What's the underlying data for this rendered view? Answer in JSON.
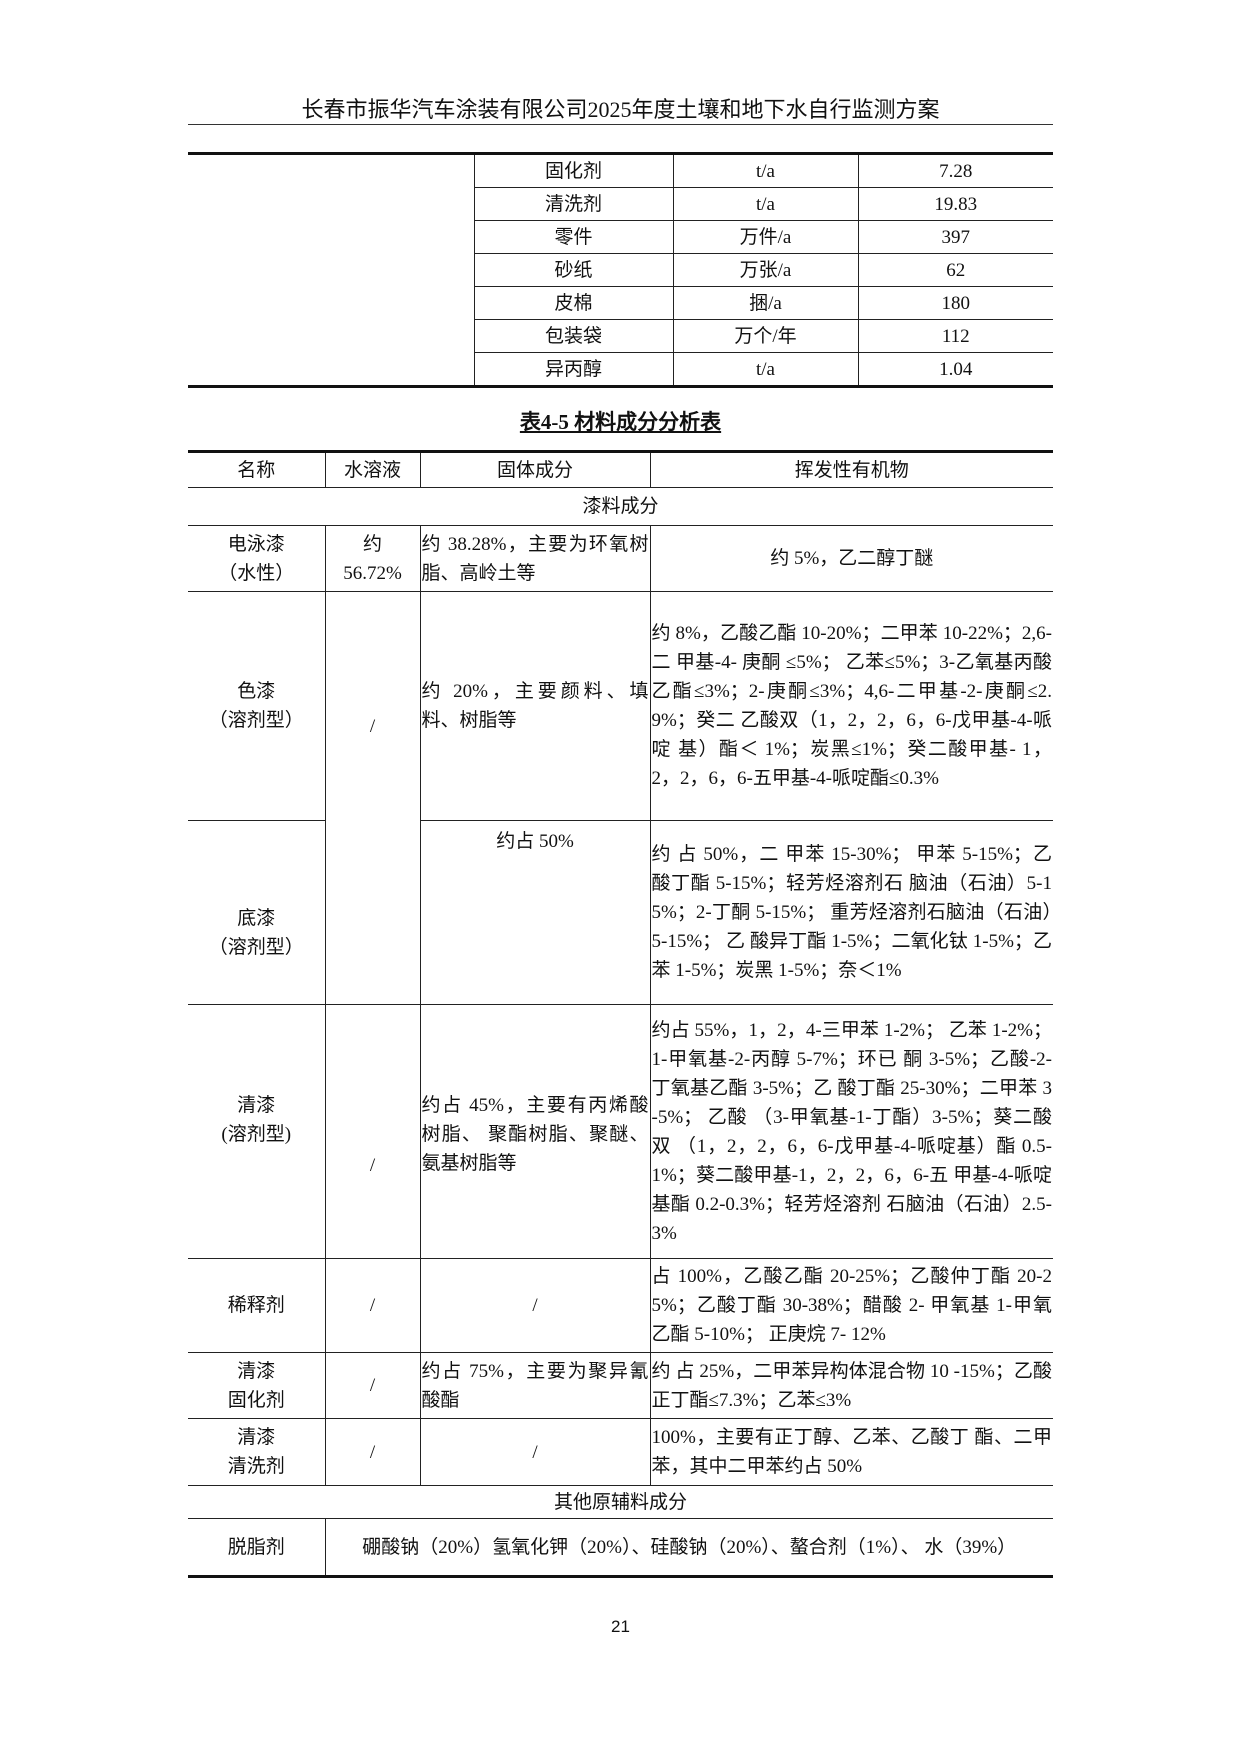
{
  "header": {
    "title": "长春市振华汽车涂装有限公司2025年度土壤和地下水自行监测方案"
  },
  "table1": {
    "rows": [
      {
        "name": "固化剂",
        "unit": "t/a",
        "value": "7.28"
      },
      {
        "name": "清洗剂",
        "unit": "t/a",
        "value": "19.83"
      },
      {
        "name": "零件",
        "unit": "万件/a",
        "value": "397"
      },
      {
        "name": "砂纸",
        "unit": "万张/a",
        "value": "62"
      },
      {
        "name": "皮棉",
        "unit": "捆/a",
        "value": "180"
      },
      {
        "name": "包装袋",
        "unit": "万个/年",
        "value": "112"
      },
      {
        "name": "异丙醇",
        "unit": "t/a",
        "value": "1.04"
      }
    ]
  },
  "table2": {
    "caption": "表4-5 材料成分分析表",
    "headers": [
      "名称",
      "水溶液",
      "固体成分",
      "挥发性有机物"
    ],
    "section1": "漆料成分",
    "rows": [
      {
        "name": "电泳漆（水性）",
        "water": "约 56.72%",
        "solid": "约 38.28%，主要为环氧树脂、高岭土等",
        "voc": "约 5%，乙二醇丁醚"
      },
      {
        "name": "色漆（溶剂型）",
        "water": "/",
        "solid": "约 20%，主要颜料、填料、树脂等",
        "voc": "约 8%，乙酸乙酯 10-20%；二甲苯 10-22%；2,6-二 甲基-4- 庚酮 ≤5%； 乙苯≤5%；3-乙氧基丙酸乙酯≤3%；2-庚酮≤3%；4,6-二甲基-2-庚酮≤2.9%；癸二 乙酸双（1，2，2，6，6-戊甲基-4-哌啶 基）酯＜ 1%；炭黑≤1%；癸二酸甲基- 1，2，2，6，6-五甲基-4-哌啶酯≤0.3%"
      },
      {
        "name": "底漆（溶剂型）",
        "water": "",
        "solid": "约占 50%",
        "voc": "约 占 50%，二 甲苯 15-30%； 甲苯 5-15%；乙酸丁酯 5-15%；轻芳烃溶剂石 脑油（石油）5-15%；2-丁酮 5-15%； 重芳烃溶剂石脑油（石油）5-15%； 乙 酸异丁酯 1-5%；二氧化钛 1-5%；乙苯 1-5%；炭黑 1-5%；奈＜1%"
      },
      {
        "name": "清漆(溶剂型)",
        "water": "/",
        "solid": "约占 45%，主要有丙烯酸树脂、 聚酯树脂、聚醚、氨基树脂等",
        "voc": "约占 55%，1，2，4-三甲苯 1-2%； 乙苯 1-2%；1-甲氧基-2-丙醇 5-7%；环已 酮 3-5%；乙酸-2-丁氧基乙酯 3-5%；乙 酸丁酯 25-30%；二甲苯 3-5%； 乙酸 （3-甲氧基-1-丁酯）3-5%；葵二酸双 （1，2，2，6，6-戊甲基-4-哌啶基）酯 0.5-1%；葵二酸甲基-1，2，2，6，6-五 甲基-4-哌啶基酯 0.2-0.3%；轻芳烃溶剂 石脑油（石油）2.5-3%"
      },
      {
        "name": "稀释剂",
        "water": "/",
        "solid": "/",
        "voc": "占 100%，乙酸乙酯 20-25%；乙酸仲丁酯 20-25%；乙酸丁酯 30-38%；醋酸 2- 甲氧基 1-甲氧乙酯 5-10%； 正庚烷 7- 12%"
      },
      {
        "name": "清漆固化剂",
        "water": "/",
        "solid": "约占 75%，主要为聚异氰酸酯",
        "voc": "约 占 25%，二甲苯异构体混合物 10 -15%；乙酸正丁酯≤7.3%；乙苯≤3%"
      },
      {
        "name": "清漆清洗剂",
        "water": "/",
        "solid": "/",
        "voc": "100%，主要有正丁醇、乙苯、乙酸丁 酯、二甲苯，其中二甲苯约占 50%"
      }
    ],
    "section2": "其他原辅料成分",
    "degreaser": {
      "name": "脱脂剂",
      "content": "硼酸钠（20%）氢氧化钾（20%）、硅酸钠（20%）、螯合剂（1%）、 水（39%）"
    }
  },
  "footer": {
    "page_number": "21"
  }
}
